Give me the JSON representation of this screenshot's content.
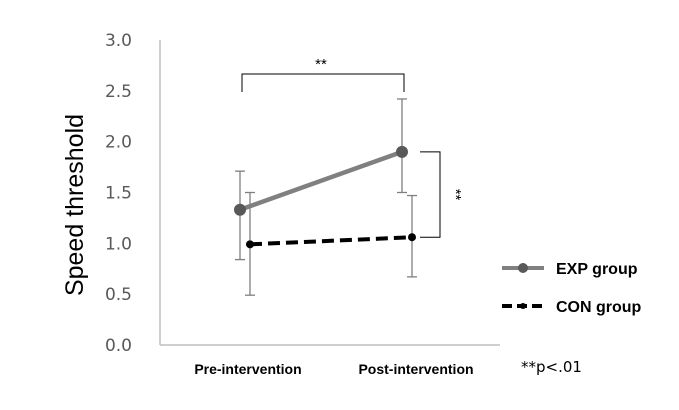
{
  "chart_data": {
    "type": "line",
    "title": "",
    "xlabel": "",
    "ylabel": "Speed threshold",
    "categories": [
      "Pre-intervention",
      "Post-intervention"
    ],
    "ylim": [
      0,
      3
    ],
    "yticks": [
      "0.0",
      "0.5",
      "1.0",
      "1.5",
      "2.0",
      "2.5",
      "3.0"
    ],
    "grid": false,
    "legend_position": "right",
    "series": [
      {
        "name": "EXP group",
        "values": [
          1.33,
          1.9
        ],
        "error_upper": [
          1.71,
          2.42
        ],
        "error_lower": [
          0.84,
          1.5
        ],
        "color": "#808080",
        "line_style": "solid",
        "marker": "circle"
      },
      {
        "name": "CON group",
        "values": [
          0.99,
          1.06
        ],
        "error_upper": [
          1.5,
          1.47
        ],
        "error_lower": [
          0.49,
          0.67
        ],
        "color": "#000000",
        "line_style": "dashed",
        "marker": "small-circle"
      }
    ],
    "annotations": {
      "top_bracket": "**",
      "right_bracket": "**",
      "note": "**p<.01"
    }
  }
}
